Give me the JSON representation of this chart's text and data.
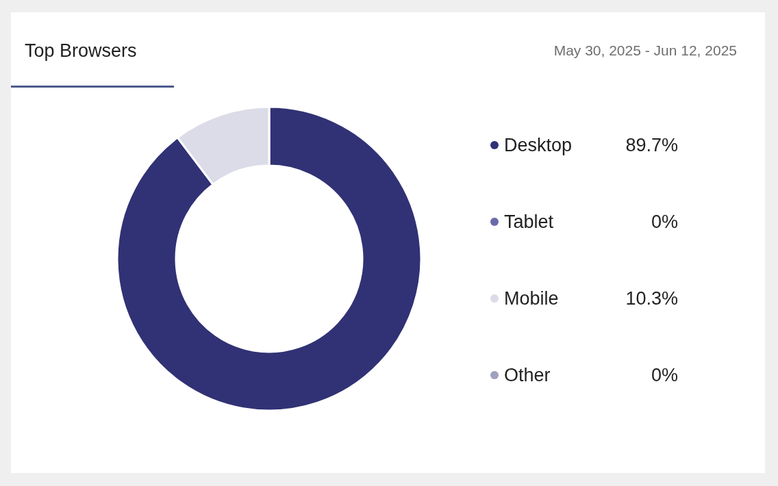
{
  "chart_data": {
    "type": "donut",
    "title": "Top Browsers",
    "subtitle": "May 30, 2025 - Jun 12, 2025",
    "categories": [
      "Desktop",
      "Tablet",
      "Mobile",
      "Other"
    ],
    "values": [
      89.7,
      0,
      10.3,
      0
    ],
    "colors": [
      "#313175",
      "#6a6aa8",
      "#dcdce8",
      "#a0a0c0"
    ],
    "value_labels": [
      "89.7%",
      "0%",
      "10.3%",
      "0%"
    ],
    "legend": "right"
  }
}
